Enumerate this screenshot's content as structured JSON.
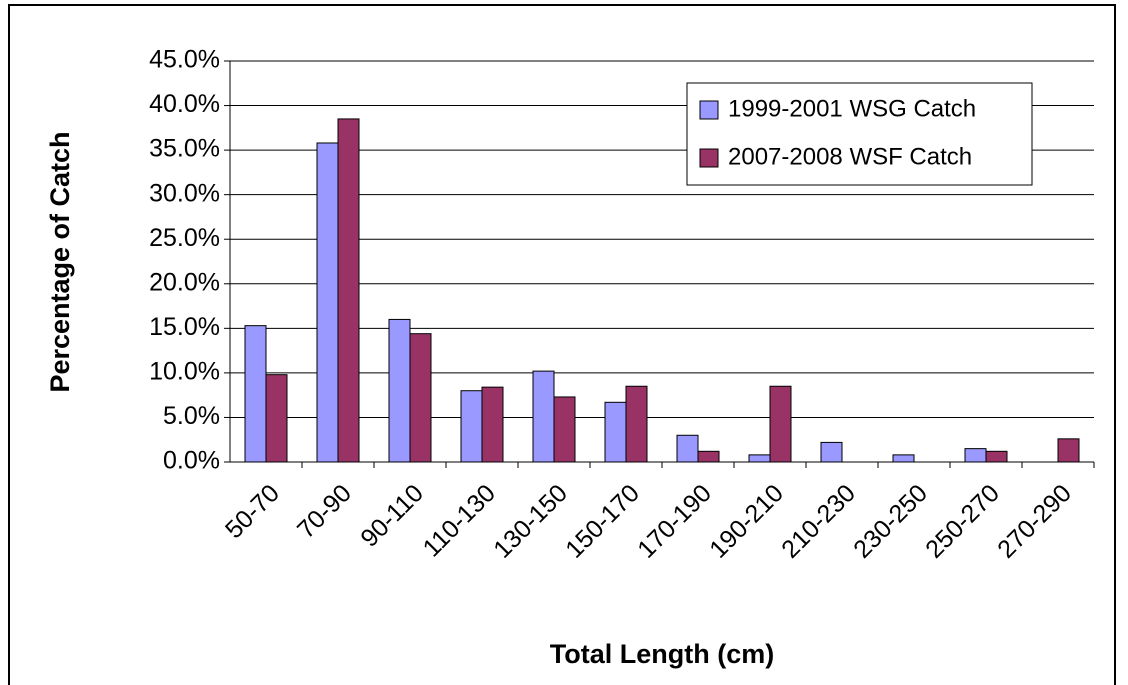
{
  "chart_data": {
    "type": "bar",
    "x_label": "Total Length (cm)",
    "y_label": "Percentage of Catch",
    "categories": [
      "50-70",
      "70-90",
      "90-110",
      "110-130",
      "130-150",
      "150-170",
      "170-190",
      "190-210",
      "210-230",
      "230-250",
      "250-270",
      "270-290"
    ],
    "series": [
      {
        "name": "1999-2001 WSG Catch",
        "color": "#9999ff",
        "values": [
          15.3,
          35.8,
          16.0,
          8.0,
          10.2,
          6.7,
          3.0,
          0.8,
          2.2,
          0.8,
          1.5,
          0
        ]
      },
      {
        "name": "2007-2008 WSF Catch",
        "color": "#993366",
        "values": [
          9.8,
          38.5,
          14.4,
          8.4,
          7.3,
          8.5,
          1.2,
          8.5,
          0,
          0,
          1.2,
          2.6
        ]
      }
    ],
    "ylim": [
      0,
      45
    ],
    "yticks": [
      {
        "value": 0,
        "label": "0.0%"
      },
      {
        "value": 5,
        "label": "5.0%"
      },
      {
        "value": 10,
        "label": "10.0%"
      },
      {
        "value": 15,
        "label": "15.0%"
      },
      {
        "value": 20,
        "label": "20.0%"
      },
      {
        "value": 25,
        "label": "25.0%"
      },
      {
        "value": 30,
        "label": "30.0%"
      },
      {
        "value": 35,
        "label": "35.0%"
      },
      {
        "value": 40,
        "label": "40.0%"
      },
      {
        "value": 45,
        "label": "45.0%"
      }
    ],
    "grid": true,
    "legend": "upper-right"
  }
}
